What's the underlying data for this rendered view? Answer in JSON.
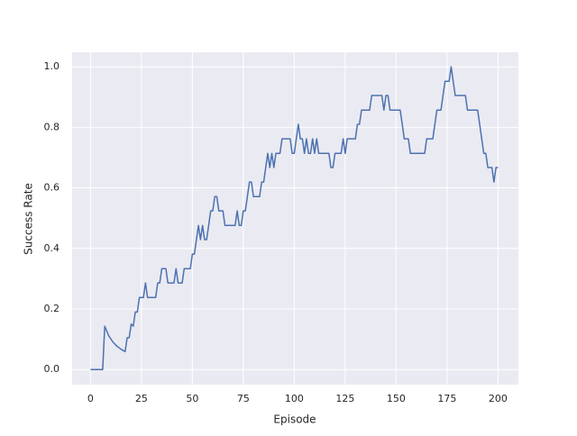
{
  "chart_data": {
    "type": "line",
    "xlabel": "Episode",
    "ylabel": "Success Rate",
    "x": [
      0,
      6,
      7,
      9,
      11,
      13,
      15,
      17,
      18,
      19,
      20,
      21,
      22,
      23,
      24,
      26,
      27,
      28,
      32,
      33,
      34,
      35,
      37,
      38,
      41,
      42,
      43,
      45,
      46,
      49,
      50,
      51,
      52,
      53,
      54,
      55,
      56,
      57,
      58,
      59,
      60,
      61,
      62,
      63,
      65,
      66,
      71,
      72,
      73,
      74,
      75,
      76,
      77,
      78,
      79,
      80,
      83,
      84,
      85,
      86,
      87,
      88,
      89,
      90,
      91,
      93,
      94,
      98,
      99,
      100,
      102,
      103,
      104,
      105,
      106,
      107,
      108,
      109,
      110,
      111,
      112,
      117,
      118,
      119,
      120,
      123,
      124,
      125,
      126,
      130,
      131,
      132,
      133,
      137,
      138,
      143,
      144,
      145,
      146,
      147,
      152,
      153,
      154,
      156,
      157,
      164,
      165,
      168,
      169,
      170,
      172,
      173,
      174,
      176,
      177,
      178,
      179,
      184,
      185,
      190,
      191,
      192,
      193,
      194,
      195,
      197,
      198,
      199,
      200
    ],
    "series": [
      {
        "color": "#4c72b0",
        "values": [
          0,
          0,
          0.143,
          0.111,
          0.091,
          0.077,
          0.067,
          0.059,
          0.105,
          0.105,
          0.15,
          0.143,
          0.19,
          0.19,
          0.238,
          0.238,
          0.286,
          0.238,
          0.238,
          0.286,
          0.286,
          0.333,
          0.333,
          0.286,
          0.286,
          0.333,
          0.286,
          0.286,
          0.333,
          0.333,
          0.381,
          0.381,
          0.429,
          0.476,
          0.429,
          0.476,
          0.429,
          0.429,
          0.476,
          0.524,
          0.524,
          0.571,
          0.571,
          0.524,
          0.524,
          0.476,
          0.476,
          0.524,
          0.476,
          0.476,
          0.524,
          0.524,
          0.571,
          0.619,
          0.619,
          0.571,
          0.571,
          0.619,
          0.619,
          0.667,
          0.714,
          0.667,
          0.714,
          0.667,
          0.714,
          0.714,
          0.762,
          0.762,
          0.714,
          0.714,
          0.81,
          0.762,
          0.762,
          0.714,
          0.762,
          0.714,
          0.714,
          0.762,
          0.714,
          0.762,
          0.714,
          0.714,
          0.667,
          0.667,
          0.714,
          0.714,
          0.762,
          0.714,
          0.762,
          0.762,
          0.81,
          0.81,
          0.857,
          0.857,
          0.905,
          0.905,
          0.857,
          0.905,
          0.905,
          0.857,
          0.857,
          0.81,
          0.762,
          0.762,
          0.714,
          0.714,
          0.762,
          0.762,
          0.81,
          0.857,
          0.857,
          0.905,
          0.952,
          0.952,
          1.0,
          0.952,
          0.905,
          0.905,
          0.857,
          0.857,
          0.81,
          0.762,
          0.714,
          0.714,
          0.667,
          0.667,
          0.619,
          0.667,
          0.667
        ]
      }
    ],
    "xlim": [
      -9,
      210
    ],
    "ylim": [
      -0.05,
      1.048
    ],
    "xticks": [
      0,
      25,
      50,
      75,
      100,
      125,
      150,
      175,
      200
    ],
    "yticks": [
      {
        "value": 0,
        "label": "0.0"
      },
      {
        "value": 0.2,
        "label": "0.2"
      },
      {
        "value": 0.4,
        "label": "0.4"
      },
      {
        "value": 0.6,
        "label": "0.6"
      },
      {
        "value": 0.8,
        "label": "0.8"
      },
      {
        "value": 1,
        "label": "1.0"
      }
    ],
    "grid": true
  }
}
